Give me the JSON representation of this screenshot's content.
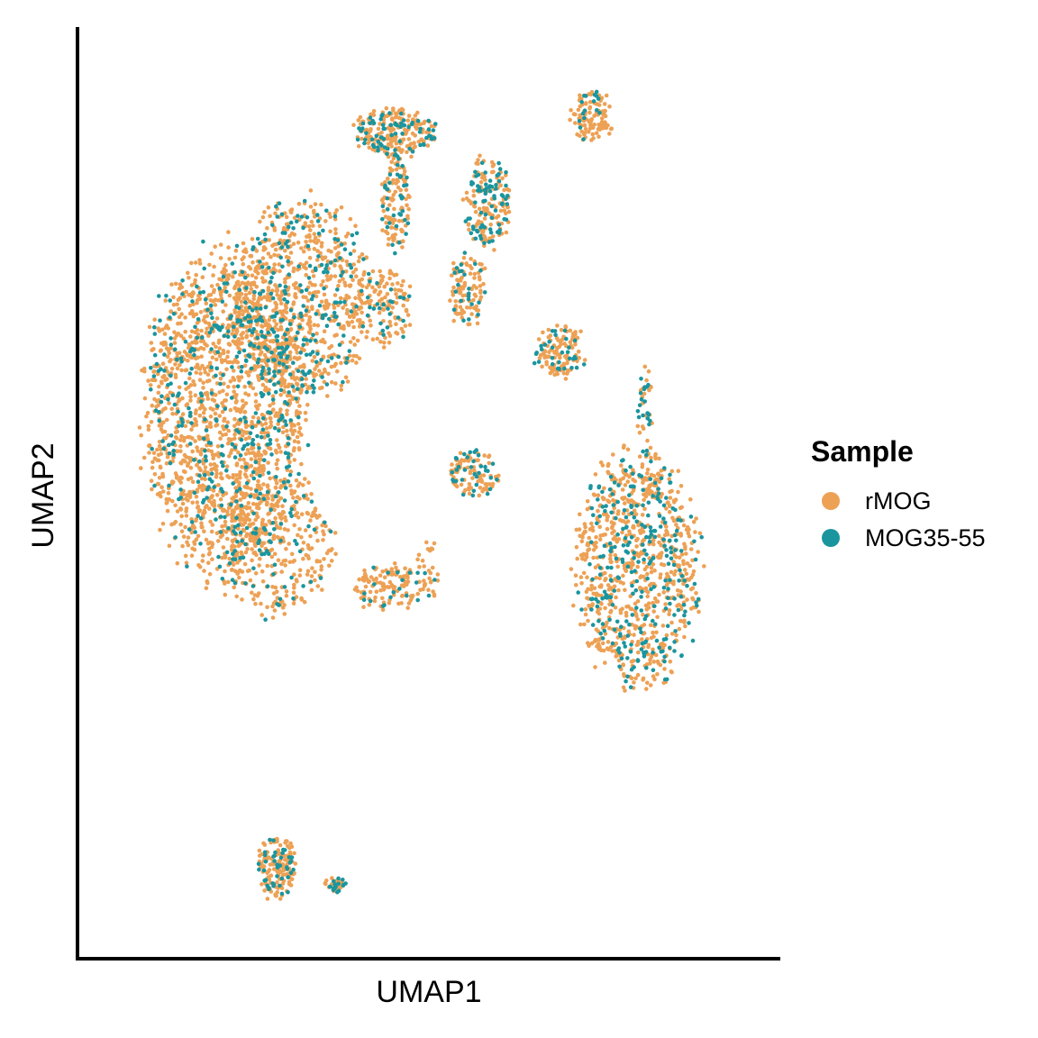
{
  "chart_data": {
    "type": "scatter",
    "title": "",
    "xlabel": "UMAP1",
    "ylabel": "UMAP2",
    "xlim": [
      0,
      100
    ],
    "ylim": [
      0,
      100
    ],
    "ticks_shown": false,
    "grid": false,
    "legend": {
      "title": "Sample",
      "placement": "right",
      "entries": [
        {
          "name": "rMOG",
          "color": "#EDA155"
        },
        {
          "name": "MOG35-55",
          "color": "#1A959E"
        }
      ]
    },
    "series": [
      {
        "name": "rMOG",
        "color": "#EDA155"
      },
      {
        "name": "MOG35-55",
        "color": "#1A959E"
      }
    ],
    "clusters": [
      {
        "shape": "ellipse",
        "cx": 19,
        "cy": 60,
        "rx": 13.5,
        "ry": 21,
        "count": 1800,
        "share": [
          0.79,
          0.21
        ]
      },
      {
        "shape": "ellipse",
        "cx": 31,
        "cy": 73,
        "rx": 11,
        "ry": 13,
        "count": 800,
        "share": [
          0.78,
          0.22
        ]
      },
      {
        "shape": "ellipse",
        "cx": 27,
        "cy": 45,
        "rx": 10,
        "ry": 9,
        "count": 350,
        "share": [
          0.82,
          0.18
        ]
      },
      {
        "shape": "ellipse",
        "cx": 43,
        "cy": 72,
        "rx": 5,
        "ry": 5,
        "count": 140,
        "share": [
          0.8,
          0.2
        ]
      },
      {
        "shape": "ellipse",
        "cx": 45,
        "cy": 92,
        "rx": 7,
        "ry": 3.2,
        "count": 260,
        "share": [
          0.7,
          0.3
        ]
      },
      {
        "shape": "ellipse",
        "cx": 45,
        "cy": 84,
        "rx": 2.6,
        "ry": 6,
        "count": 130,
        "share": [
          0.72,
          0.28
        ]
      },
      {
        "shape": "ellipse",
        "cx": 59,
        "cy": 84,
        "rx": 4,
        "ry": 6,
        "count": 190,
        "share": [
          0.62,
          0.38
        ]
      },
      {
        "shape": "ellipse",
        "cx": 56,
        "cy": 74,
        "rx": 3.2,
        "ry": 5,
        "count": 110,
        "share": [
          0.75,
          0.25
        ]
      },
      {
        "shape": "ellipse",
        "cx": 70,
        "cy": 67,
        "rx": 4.5,
        "ry": 3.5,
        "count": 130,
        "share": [
          0.78,
          0.22
        ]
      },
      {
        "shape": "ellipse",
        "cx": 75,
        "cy": 94,
        "rx": 3.6,
        "ry": 3.2,
        "count": 120,
        "share": [
          0.85,
          0.15
        ]
      },
      {
        "shape": "ellipse",
        "cx": 57,
        "cy": 53,
        "rx": 4.5,
        "ry": 3,
        "count": 120,
        "share": [
          0.62,
          0.38
        ]
      },
      {
        "shape": "ellipse",
        "cx": 82,
        "cy": 42,
        "rx": 10.5,
        "ry": 15,
        "count": 1000,
        "share": [
          0.74,
          0.26
        ]
      },
      {
        "shape": "ellipse",
        "cx": 83,
        "cy": 60,
        "rx": 1.2,
        "ry": 6,
        "count": 40,
        "share": [
          0.6,
          0.4
        ]
      },
      {
        "shape": "ellipse",
        "cx": 44,
        "cy": 40,
        "rx": 6,
        "ry": 3,
        "count": 130,
        "share": [
          0.86,
          0.14
        ]
      },
      {
        "shape": "ellipse",
        "cx": 50,
        "cy": 42,
        "rx": 2,
        "ry": 4,
        "count": 30,
        "share": [
          0.9,
          0.1
        ]
      },
      {
        "shape": "ellipse",
        "cx": 27,
        "cy": 8,
        "rx": 3.3,
        "ry": 4,
        "count": 170,
        "share": [
          0.8,
          0.2
        ]
      },
      {
        "shape": "ellipse",
        "cx": 36,
        "cy": 6,
        "rx": 2,
        "ry": 1,
        "count": 40,
        "share": [
          0.6,
          0.4
        ]
      }
    ]
  }
}
